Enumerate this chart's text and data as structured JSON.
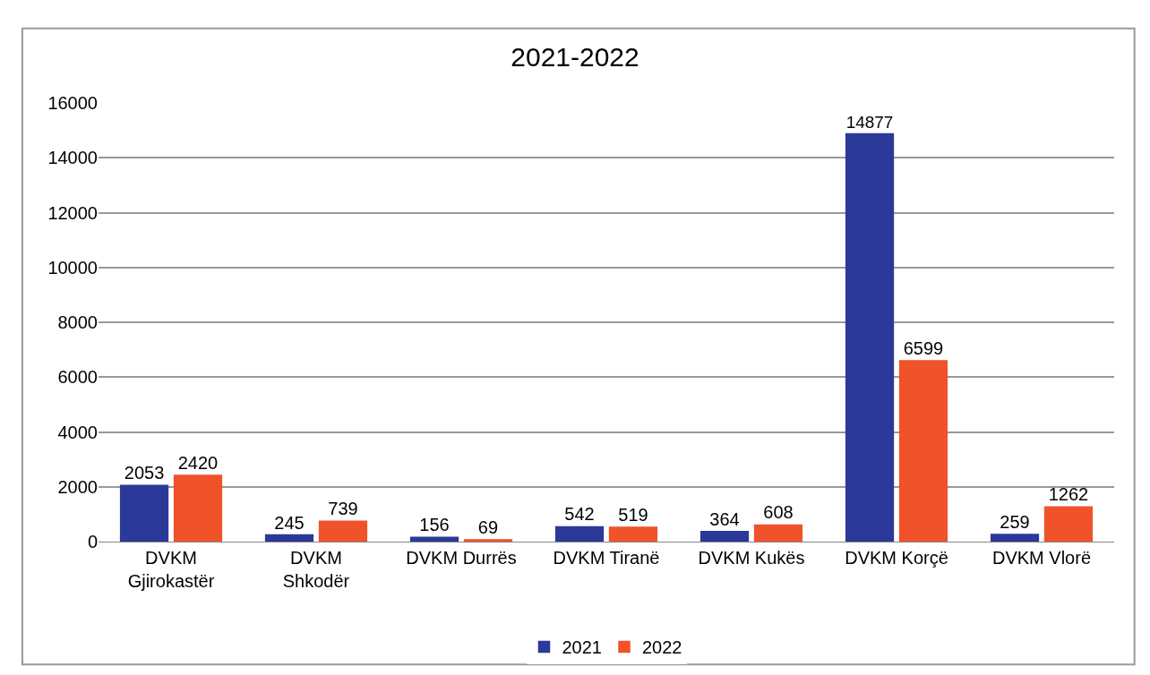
{
  "chart_data": {
    "type": "bar",
    "title": "2021-2022",
    "categories": [
      "DVKM\nGjirokastër",
      "DVKM\nShkodër",
      "DVKM Durrës",
      "DVKM Tiranë",
      "DVKM Kukës",
      "DVKM Korçë",
      "DVKM Vlorë"
    ],
    "series": [
      {
        "name": "2021",
        "color": "#2b3a98",
        "values": [
          2053,
          245,
          156,
          542,
          364,
          14877,
          259
        ]
      },
      {
        "name": "2022",
        "color": "#f0522a",
        "values": [
          2420,
          739,
          69,
          519,
          608,
          6599,
          1262
        ]
      }
    ],
    "ylim": [
      0,
      16000
    ],
    "yticks": [
      0,
      2000,
      4000,
      6000,
      8000,
      10000,
      12000,
      14000,
      16000
    ],
    "grid": "y",
    "legend": "bottom",
    "data_labels": true
  }
}
